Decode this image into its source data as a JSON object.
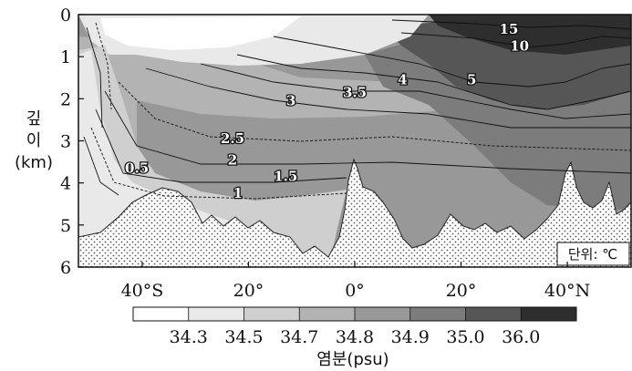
{
  "chart_data": {
    "type": "heatmap",
    "ylabel_lines": [
      "깊",
      "이",
      "(km)"
    ],
    "y_ticks": [
      "0",
      "1",
      "2",
      "3",
      "4",
      "5",
      "6"
    ],
    "ylim": [
      0,
      6
    ],
    "x_ticks": [
      "40°S",
      "20°",
      "0°",
      "20°",
      "40°N"
    ],
    "x_tick_values": [
      -40,
      -20,
      0,
      20,
      40
    ],
    "xlim": [
      -52,
      52
    ],
    "colorbar": {
      "title": "염분(psu)",
      "tick_labels": [
        "34.3",
        "34.5",
        "34.7",
        "34.8",
        "34.9",
        "35.0",
        "36.0"
      ],
      "colors": [
        "#ffffff",
        "#e9e9e9",
        "#cfcfcf",
        "#b3b3b3",
        "#989898",
        "#7c7c7c",
        "#565656",
        "#2e2e2e"
      ]
    },
    "unit_note": "단위: ℃",
    "isotherm_labels": [
      {
        "text": "15",
        "lat": 29,
        "depth": 0.35
      },
      {
        "text": "10",
        "lat": 31,
        "depth": 0.75
      },
      {
        "text": "5",
        "lat": 22,
        "depth": 1.55
      },
      {
        "text": "4",
        "lat": 9,
        "depth": 1.55
      },
      {
        "text": "3.5",
        "lat": 0,
        "depth": 1.85
      },
      {
        "text": "3",
        "lat": -12,
        "depth": 2.05
      },
      {
        "text": "2.5",
        "lat": -23,
        "depth": 2.95
      },
      {
        "text": "2",
        "lat": -23,
        "depth": 3.45
      },
      {
        "text": "1.5",
        "lat": -13,
        "depth": 3.85
      },
      {
        "text": "1",
        "lat": -22,
        "depth": 4.25
      },
      {
        "text": "0.5",
        "lat": -41,
        "depth": 3.65
      }
    ]
  }
}
